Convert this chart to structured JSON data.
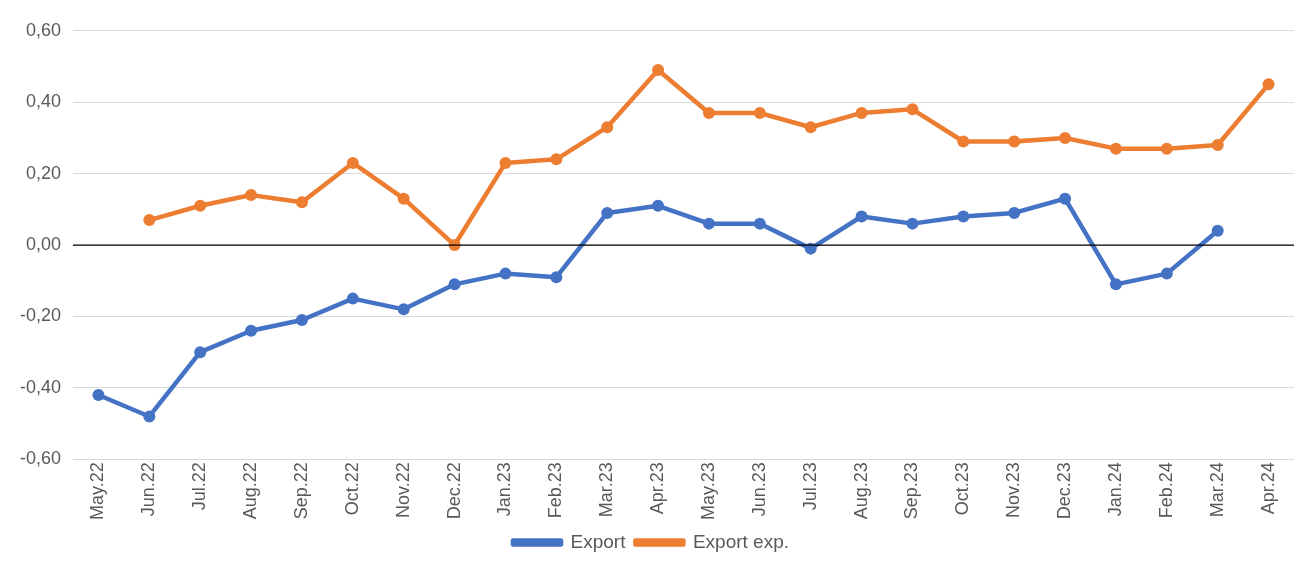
{
  "chart_data": {
    "type": "line",
    "categories": [
      "May.22",
      "Jun.22",
      "Jul.22",
      "Aug.22",
      "Sep.22",
      "Oct.22",
      "Nov.22",
      "Dec.22",
      "Jan.23",
      "Feb.23",
      "Mar.23",
      "Apr.23",
      "May.23",
      "Jun.23",
      "Jul.23",
      "Aug.23",
      "Sep.23",
      "Oct.23",
      "Nov.23",
      "Dec.23",
      "Jan.24",
      "Feb.24",
      "Mar.24",
      "Apr.24"
    ],
    "series": [
      {
        "name": "Export",
        "color": "#4472c4",
        "values": [
          -0.42,
          -0.48,
          -0.3,
          -0.24,
          -0.21,
          -0.15,
          -0.18,
          -0.11,
          -0.08,
          -0.09,
          0.09,
          0.11,
          0.06,
          0.06,
          -0.01,
          0.08,
          0.06,
          0.08,
          0.09,
          0.13,
          -0.11,
          -0.08,
          0.04,
          null
        ]
      },
      {
        "name": "Export exp.",
        "color": "#ed7d31",
        "values": [
          null,
          0.07,
          0.11,
          0.14,
          0.12,
          0.23,
          0.13,
          0.0,
          0.23,
          0.24,
          0.33,
          0.49,
          0.37,
          0.37,
          0.33,
          0.37,
          0.38,
          0.29,
          0.29,
          0.3,
          0.27,
          0.27,
          0.28,
          0.45
        ]
      }
    ],
    "ylim": [
      -0.6,
      0.6
    ],
    "yticks": [
      {
        "value": -0.6,
        "label": "-0,60"
      },
      {
        "value": -0.4,
        "label": "-0,40"
      },
      {
        "value": -0.2,
        "label": "-0,20"
      },
      {
        "value": 0,
        "label": "0,00"
      },
      {
        "value": 0.2,
        "label": "0,20"
      },
      {
        "value": 0.4,
        "label": "0,40"
      },
      {
        "value": 0.6,
        "label": "0,60"
      }
    ],
    "ref_lines": [
      {
        "axis": "y",
        "value": 0,
        "color": "#000000"
      }
    ],
    "grid": "y",
    "legend": "bottom",
    "marker": "circle",
    "line_style": "solid"
  }
}
